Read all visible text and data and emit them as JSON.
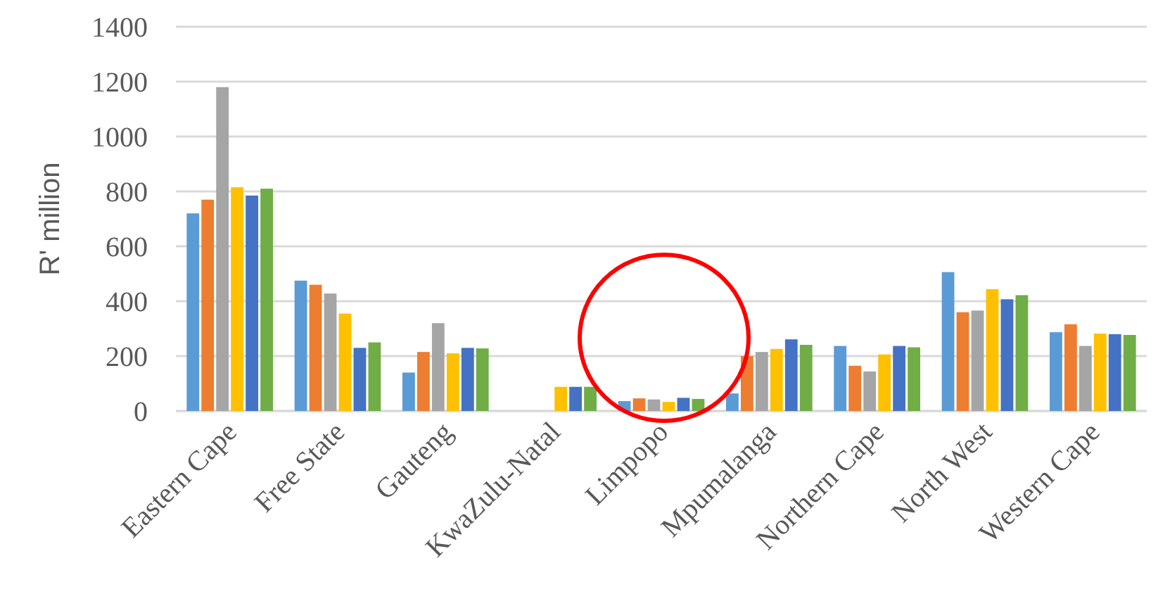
{
  "chart_data": {
    "type": "bar",
    "ylabel": "R' million",
    "categories": [
      "Eastern Cape",
      "Free State",
      "Gauteng",
      "KwaZulu-Natal",
      "Limpopo",
      "Mpumalanga",
      "Northern Cape",
      "North West",
      "Western Cape"
    ],
    "series": [
      {
        "color": "#5b9bd5",
        "values": [
          720,
          475,
          140,
          null,
          36,
          64,
          237,
          506,
          287
        ]
      },
      {
        "color": "#ed7d31",
        "values": [
          770,
          460,
          215,
          null,
          46,
          200,
          165,
          360,
          316
        ]
      },
      {
        "color": "#a5a5a5",
        "values": [
          1180,
          428,
          320,
          null,
          42,
          215,
          144,
          366,
          237
        ]
      },
      {
        "color": "#ffc000",
        "values": [
          815,
          355,
          210,
          88,
          33,
          226,
          206,
          444,
          282
        ]
      },
      {
        "color": "#4472c4",
        "values": [
          785,
          230,
          230,
          88,
          48,
          261,
          237,
          407,
          280
        ]
      },
      {
        "color": "#70ad47",
        "values": [
          810,
          250,
          228,
          88,
          44,
          241,
          232,
          422,
          277
        ]
      }
    ],
    "ylim": [
      0,
      1400
    ],
    "yticks": [
      0,
      200,
      400,
      600,
      800,
      1000,
      1200,
      1400
    ],
    "grid": "y"
  }
}
